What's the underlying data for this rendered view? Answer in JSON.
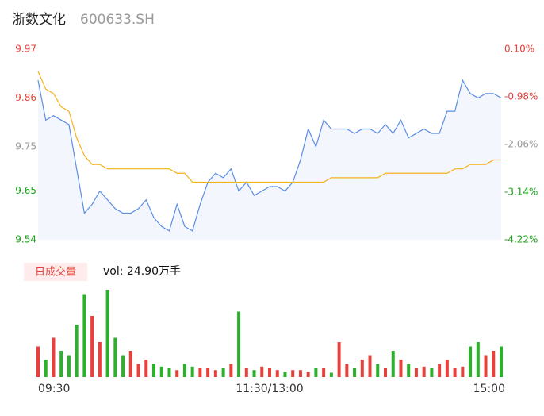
{
  "chart_data": [
    {
      "type": "line",
      "title": "浙数文化",
      "subtitle": "600633.SH",
      "x": [
        0,
        4,
        8,
        12,
        16,
        20,
        24,
        28,
        32,
        36,
        40,
        44,
        48,
        52,
        56,
        60,
        64,
        68,
        72,
        76,
        80,
        84,
        88,
        92,
        96,
        100,
        104,
        108,
        112,
        116,
        120,
        124,
        128,
        132,
        136,
        140,
        144,
        148,
        152,
        156,
        160,
        164,
        168,
        172,
        176,
        180,
        184,
        188,
        192,
        196,
        200,
        204,
        208,
        212,
        216,
        220,
        224,
        228,
        232,
        236,
        240
      ],
      "xlim": [
        0,
        240
      ],
      "ylim": [
        9.54,
        9.97
      ],
      "yticks": [
        9.54,
        9.65,
        9.75,
        9.86,
        9.97
      ],
      "y2lim": [
        -4.22,
        0.1
      ],
      "y2ticks": [
        {
          "value": -4.22,
          "label": "-4.22%"
        },
        {
          "value": -3.14,
          "label": "-3.14%"
        },
        {
          "value": -2.06,
          "label": "-2.06%"
        },
        {
          "value": -0.98,
          "label": "-0.98%"
        },
        {
          "value": 0.1,
          "label": "0.10%"
        }
      ],
      "tick_colors": [
        "#1aa31a",
        "#1aa31a",
        "#999999",
        "#e8413d",
        "#e8413d"
      ],
      "area_color": "#f3f6fc",
      "series": [
        {
          "color": "#5b8ee6",
          "values": [
            9.9,
            9.81,
            9.82,
            9.81,
            9.8,
            9.7,
            9.6,
            9.62,
            9.65,
            9.63,
            9.61,
            9.6,
            9.6,
            9.61,
            9.63,
            9.59,
            9.57,
            9.56,
            9.62,
            9.57,
            9.56,
            9.62,
            9.67,
            9.69,
            9.68,
            9.7,
            9.65,
            9.67,
            9.64,
            9.65,
            9.66,
            9.66,
            9.65,
            9.67,
            9.72,
            9.79,
            9.75,
            9.81,
            9.79,
            9.79,
            9.79,
            9.78,
            9.79,
            9.79,
            9.78,
            9.8,
            9.78,
            9.81,
            9.77,
            9.78,
            9.79,
            9.78,
            9.78,
            9.83,
            9.83,
            9.9,
            9.87,
            9.86,
            9.87,
            9.87,
            9.86
          ]
        },
        {
          "color": "#f5b21b",
          "values": [
            9.92,
            9.88,
            9.87,
            9.84,
            9.83,
            9.77,
            9.73,
            9.71,
            9.71,
            9.7,
            9.7,
            9.7,
            9.7,
            9.7,
            9.7,
            9.7,
            9.7,
            9.7,
            9.69,
            9.69,
            9.67,
            9.67,
            9.67,
            9.67,
            9.67,
            9.67,
            9.67,
            9.67,
            9.67,
            9.67,
            9.67,
            9.67,
            9.67,
            9.67,
            9.67,
            9.67,
            9.67,
            9.67,
            9.68,
            9.68,
            9.68,
            9.68,
            9.68,
            9.68,
            9.68,
            9.69,
            9.69,
            9.69,
            9.69,
            9.69,
            9.69,
            9.69,
            9.69,
            9.69,
            9.7,
            9.7,
            9.71,
            9.71,
            9.71,
            9.72,
            9.72
          ]
        }
      ]
    },
    {
      "type": "bar",
      "label": "日成交量",
      "annotation": "vol: 24.90万手",
      "x": [
        0,
        4,
        8,
        12,
        16,
        20,
        24,
        28,
        32,
        36,
        40,
        44,
        48,
        52,
        56,
        60,
        64,
        68,
        72,
        76,
        80,
        84,
        88,
        92,
        96,
        100,
        104,
        108,
        112,
        116,
        120,
        124,
        128,
        132,
        136,
        140,
        144,
        148,
        152,
        156,
        160,
        164,
        168,
        172,
        176,
        180,
        184,
        188,
        192,
        196,
        200,
        204,
        208,
        212,
        216,
        220,
        224,
        228,
        232,
        236,
        240
      ],
      "xlim": [
        0,
        240
      ],
      "xticks": [
        {
          "value": 0,
          "label": "09:30"
        },
        {
          "value": 120,
          "label": "11:30/13:00"
        },
        {
          "value": 240,
          "label": "15:00"
        }
      ],
      "ylim": [
        0,
        100
      ],
      "up_color": "#e8413d",
      "down_color": "#2cb12c",
      "values": [
        35,
        20,
        45,
        30,
        25,
        60,
        95,
        70,
        40,
        100,
        45,
        25,
        30,
        15,
        20,
        15,
        12,
        10,
        8,
        15,
        12,
        10,
        10,
        8,
        10,
        15,
        75,
        10,
        8,
        12,
        10,
        8,
        6,
        8,
        8,
        6,
        10,
        10,
        5,
        40,
        15,
        10,
        20,
        25,
        15,
        10,
        30,
        20,
        15,
        10,
        12,
        10,
        15,
        20,
        10,
        12,
        35,
        40,
        25,
        30,
        35
      ]
    }
  ]
}
